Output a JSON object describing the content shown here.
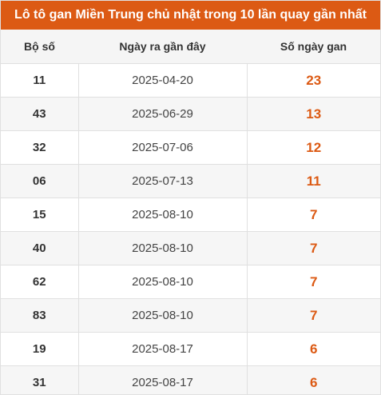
{
  "header": {
    "title": "Lô tô gan Miền Trung chủ nhật trong 10 lần quay gần nhất"
  },
  "table": {
    "columns": [
      "Bộ số",
      "Ngày ra gần đây",
      "Số ngày gan"
    ],
    "rows": [
      {
        "number": "11",
        "date": "2025-04-20",
        "gan": "23"
      },
      {
        "number": "43",
        "date": "2025-06-29",
        "gan": "13"
      },
      {
        "number": "32",
        "date": "2025-07-06",
        "gan": "12"
      },
      {
        "number": "06",
        "date": "2025-07-13",
        "gan": "11"
      },
      {
        "number": "15",
        "date": "2025-08-10",
        "gan": "7"
      },
      {
        "number": "40",
        "date": "2025-08-10",
        "gan": "7"
      },
      {
        "number": "62",
        "date": "2025-08-10",
        "gan": "7"
      },
      {
        "number": "83",
        "date": "2025-08-10",
        "gan": "7"
      },
      {
        "number": "19",
        "date": "2025-08-17",
        "gan": "6"
      },
      {
        "number": "31",
        "date": "2025-08-17",
        "gan": "6"
      }
    ]
  },
  "colors": {
    "accent": "#dc5a14"
  }
}
